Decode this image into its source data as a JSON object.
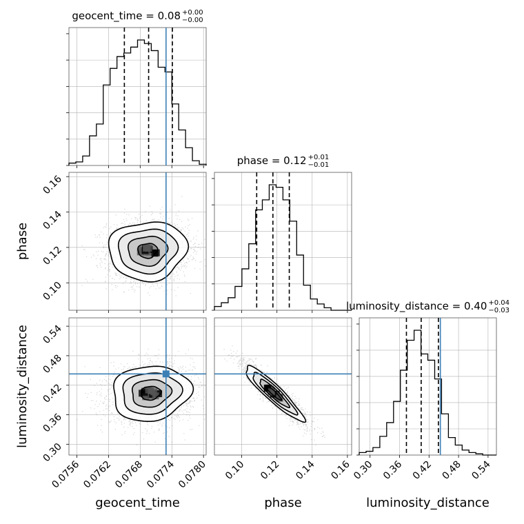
{
  "chart_data": {
    "type": "corner",
    "parameters": [
      "geocent_time",
      "phase",
      "luminosity_distance"
    ],
    "truths": {
      "geocent_time": 0.07729,
      "phase": null,
      "luminosity_distance": 0.443
    },
    "titles": [
      {
        "param": "geocent_time",
        "prefix": "geocent_time = ",
        "value": "0.08",
        "plus": "+0.00",
        "minus": "−0.00"
      },
      {
        "param": "phase",
        "prefix": "phase = ",
        "value": "0.12",
        "plus": "+0.01",
        "minus": "−0.01"
      },
      {
        "param": "luminosity_distance",
        "prefix": "luminosity_distance = ",
        "value": "0.40",
        "plus": "+0.04",
        "minus": "−0.03"
      }
    ],
    "axes": {
      "geocent_time": {
        "label": "geocent_time",
        "range": [
          0.07545,
          0.07805
        ],
        "ticks": [
          "0.0756",
          "0.0762",
          "0.0768",
          "0.0774",
          "0.0780"
        ],
        "tick_values": [
          0.0756,
          0.0762,
          0.0768,
          0.0774,
          0.078
        ]
      },
      "phase": {
        "label": "phase",
        "range": [
          0.0845,
          0.1624
        ],
        "ticks": [
          "0.10",
          "0.12",
          "0.14",
          "0.16"
        ],
        "tick_values": [
          0.1,
          0.12,
          0.14,
          0.16
        ]
      },
      "luminosity_distance": {
        "label": "luminosity_distance",
        "range": [
          0.278,
          0.557
        ],
        "ticks": [
          "0.30",
          "0.36",
          "0.42",
          "0.48",
          "0.54"
        ],
        "tick_values": [
          0.3,
          0.36,
          0.42,
          0.48,
          0.54
        ]
      }
    },
    "histograms": [
      {
        "param": "geocent_time",
        "quantiles": [
          0.0765,
          0.07696,
          0.07741
        ],
        "edges": [
          0.07545,
          0.07558,
          0.07571,
          0.07584,
          0.07597,
          0.0761,
          0.07623,
          0.07636,
          0.07649,
          0.07662,
          0.07675,
          0.07688,
          0.07701,
          0.07714,
          0.07727,
          0.0774,
          0.07753,
          0.07766,
          0.07779,
          0.07792,
          0.07805
        ],
        "counts": [
          2,
          3,
          8,
          25,
          35,
          68,
          82,
          92,
          95,
          100,
          106,
          103,
          97,
          83,
          79,
          52,
          30,
          15,
          4,
          1
        ]
      },
      {
        "param": "phase",
        "quantiles": [
          0.1085,
          0.1177,
          0.127
        ],
        "edges": [
          0.0845,
          0.0884,
          0.0923,
          0.0962,
          0.1001,
          0.104,
          0.1079,
          0.1117,
          0.1156,
          0.1195,
          0.1234,
          0.1273,
          0.1312,
          0.1351,
          0.139,
          0.1429,
          0.1468,
          0.1507,
          0.1546,
          0.1585,
          0.1624
        ],
        "counts": [
          3,
          6,
          10,
          19,
          33,
          53,
          80,
          88,
          100,
          98,
          88,
          71,
          44,
          20,
          9,
          5,
          2,
          0,
          0,
          0
        ]
      },
      {
        "param": "luminosity_distance",
        "quantiles": [
          0.374,
          0.404,
          0.439
        ],
        "edges": [
          0.278,
          0.292,
          0.3059,
          0.3199,
          0.3338,
          0.3478,
          0.3617,
          0.3757,
          0.3896,
          0.4036,
          0.4175,
          0.4315,
          0.4454,
          0.4594,
          0.4733,
          0.4873,
          0.5012,
          0.5152,
          0.5291,
          0.5431,
          0.557
        ],
        "counts": [
          2,
          3,
          6,
          15,
          26,
          43,
          68,
          92,
          100,
          81,
          76,
          61,
          33,
          14,
          8,
          4,
          2,
          1,
          0,
          0
        ]
      }
    ],
    "joint": [
      {
        "x": "geocent_time",
        "y": "phase",
        "mean": [
          0.07694,
          0.1182
        ],
        "sd": [
          0.00037,
          0.0083
        ],
        "rho": 0.05,
        "contour_levels_sigma": [
          0.5,
          1.0,
          1.5,
          2.0
        ]
      },
      {
        "x": "geocent_time",
        "y": "luminosity_distance",
        "mean": [
          0.077,
          0.404
        ],
        "sd": [
          0.00037,
          0.028
        ],
        "rho": 0.1,
        "contour_levels_sigma": [
          0.5,
          1.0,
          1.5,
          2.0
        ]
      },
      {
        "x": "phase",
        "y": "luminosity_distance",
        "mean": [
          0.1182,
          0.404
        ],
        "sd": [
          0.0083,
          0.028
        ],
        "rho": -0.92,
        "contour_levels_sigma": [
          0.5,
          1.0,
          1.5,
          2.0
        ]
      }
    ],
    "colors": {
      "truth": "#3b7fb5",
      "hist": "#000000",
      "grid": "#b0b0b0",
      "points": "#808080"
    }
  }
}
